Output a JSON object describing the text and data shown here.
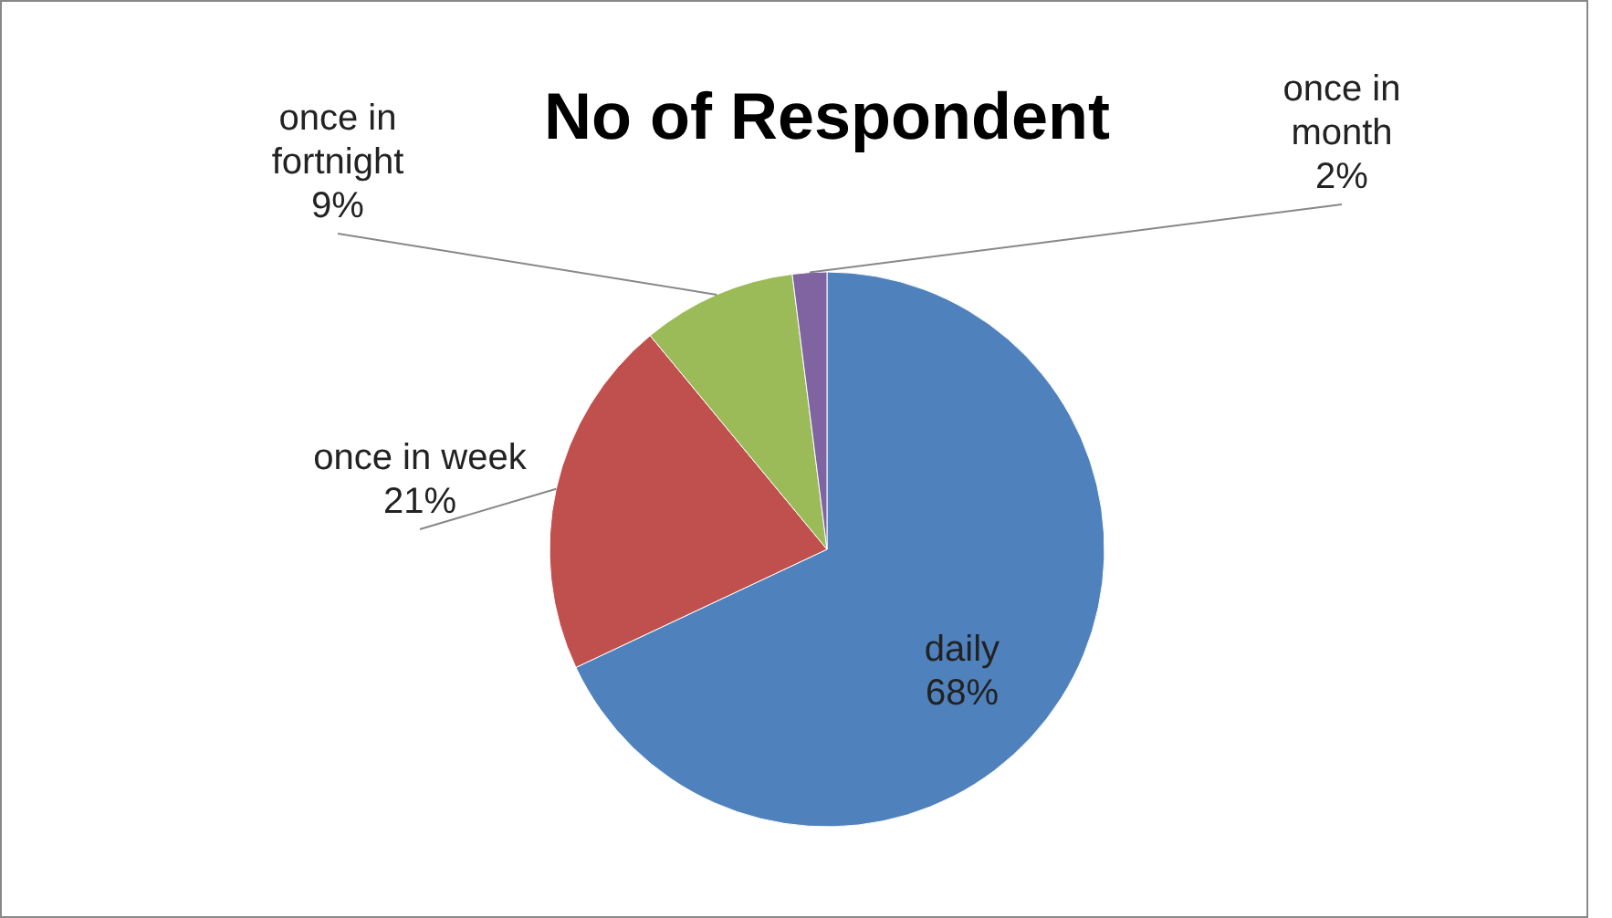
{
  "chart_data": {
    "type": "pie",
    "title": "No of Respondent",
    "categories": [
      "daily",
      "once in week",
      "once in fortnight",
      "once in month"
    ],
    "values": [
      68,
      21,
      9,
      2
    ],
    "value_labels": [
      "68%",
      "21%",
      "9%",
      "2%"
    ],
    "colors": [
      "#4f81bd",
      "#c0504d",
      "#9bbb59",
      "#8064a2"
    ],
    "legend": false
  }
}
